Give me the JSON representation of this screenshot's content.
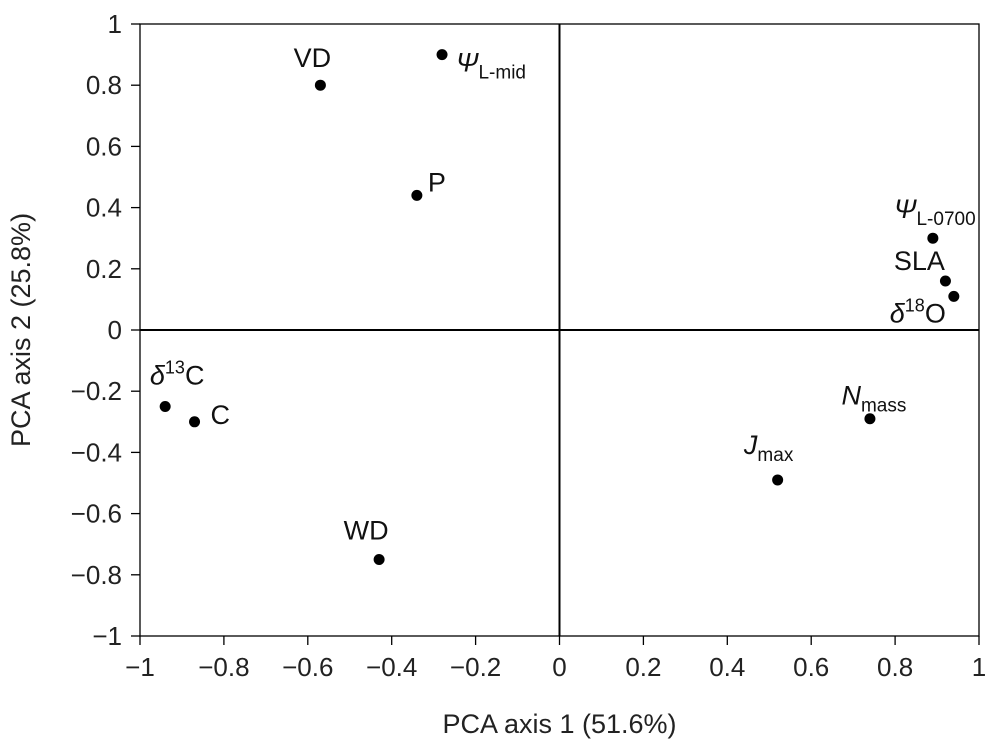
{
  "chart_data": {
    "type": "scatter",
    "xlabel": "PCA axis 1 (51.6%)",
    "ylabel": "PCA axis 2 (25.8%)",
    "xlim": [
      -1,
      1
    ],
    "ylim": [
      -1,
      1
    ],
    "x_ticks": [
      "−1",
      "−0.8",
      "−0.6",
      "−0.4",
      "−0.2",
      "0",
      "0.2",
      "0.4",
      "0.6",
      "0.8",
      "1"
    ],
    "y_ticks": [
      "1",
      "0.8",
      "0.6",
      "0.4",
      "0.2",
      "0",
      "−0.2",
      "−0.4",
      "−0.6",
      "−0.8",
      "−1"
    ],
    "grid": false,
    "legend": "none",
    "reference_lines": {
      "x": 0,
      "y": 0
    },
    "points": [
      {
        "id": "vd",
        "label": {
          "main": "VD",
          "italic": false
        },
        "x": -0.57,
        "y": 0.8
      },
      {
        "id": "psi-l-mid",
        "label": {
          "main": "Ψ",
          "italic": true,
          "sub": "L-mid"
        },
        "x": -0.28,
        "y": 0.9
      },
      {
        "id": "p",
        "label": {
          "main": "P",
          "italic": false
        },
        "x": -0.34,
        "y": 0.44
      },
      {
        "id": "psi-l-0700",
        "label": {
          "main": "Ψ",
          "italic": true,
          "sub": "L-0700"
        },
        "x": 0.89,
        "y": 0.3
      },
      {
        "id": "sla",
        "label": {
          "main": "SLA",
          "italic": false
        },
        "x": 0.92,
        "y": 0.16
      },
      {
        "id": "delta18o",
        "label": {
          "main": "δ",
          "italic": true,
          "sup": "18",
          "after": "O"
        },
        "x": 0.94,
        "y": 0.11
      },
      {
        "id": "delta13c",
        "label": {
          "main": "δ",
          "italic": true,
          "sup": "13",
          "after": "C"
        },
        "x": -0.94,
        "y": -0.25
      },
      {
        "id": "c",
        "label": {
          "main": "C",
          "italic": false
        },
        "x": -0.87,
        "y": -0.3
      },
      {
        "id": "nmass",
        "label": {
          "main": "N",
          "italic": true,
          "sub": "mass"
        },
        "x": 0.74,
        "y": -0.29
      },
      {
        "id": "jmax",
        "label": {
          "main": "J",
          "italic": true,
          "sub": "max"
        },
        "x": 0.52,
        "y": -0.49
      },
      {
        "id": "wd",
        "label": {
          "main": "WD",
          "italic": false
        },
        "x": -0.43,
        "y": -0.75
      }
    ]
  }
}
